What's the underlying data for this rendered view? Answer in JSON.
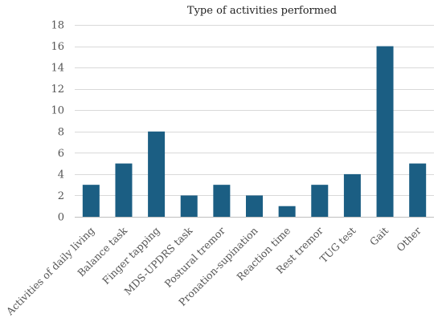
{
  "chart_data": {
    "type": "bar",
    "title": "Type of activities performed",
    "xlabel": "",
    "ylabel": "",
    "categories": [
      "Activities of daily living",
      "Balance task",
      "Finger tapping",
      "MDS-UPDRS task",
      "Postural tremor",
      "Pronation-supination",
      "Reaction time",
      "Rest tremor",
      "TUG test",
      "Gait",
      "Other"
    ],
    "values": [
      3,
      5,
      8,
      2,
      3,
      2,
      1,
      3,
      4,
      16,
      5
    ],
    "ylim": [
      0,
      18
    ],
    "yticks": [
      0,
      2,
      4,
      6,
      8,
      10,
      12,
      14,
      16,
      18
    ],
    "grid": true,
    "legend": "none",
    "bar_color": "#1b5e83"
  }
}
